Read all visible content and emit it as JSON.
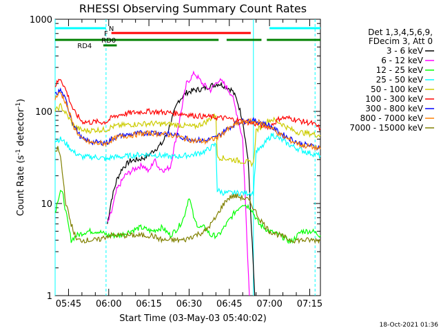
{
  "chart_data": {
    "type": "line",
    "title": "RHESSI Observing Summary Count Rates",
    "xlabel": "Start Time (03-May-03 05:40:02)",
    "ylabel_parts": [
      "Count Rate (s",
      "-1",
      " detector",
      "-1",
      ")"
    ],
    "yscale": "log",
    "ylim": [
      1,
      1000
    ],
    "y_ticks": [
      1,
      10,
      100,
      1000
    ],
    "y_tick_labels": [
      "1",
      "10",
      "100",
      "1000"
    ],
    "xlim_minutes": [
      0,
      99
    ],
    "x_ticks_minutes": [
      5,
      20,
      35,
      50,
      65,
      80,
      95
    ],
    "x_tick_labels": [
      "05:45",
      "06:00",
      "06:15",
      "06:30",
      "06:45",
      "07:00",
      "07:15"
    ],
    "legend_header": [
      "Det 1,3,4,5,6,9,",
      "FDecim 3, Att 0"
    ],
    "legend_placement": "right",
    "series": [
      {
        "name": "3 - 6 keV",
        "color": "#000000",
        "x": [
          19.5,
          21,
          23,
          25,
          28,
          31,
          34,
          37,
          40,
          42,
          44,
          46,
          49,
          52,
          55,
          58,
          61,
          63,
          66,
          68,
          70,
          72,
          74.5
        ],
        "y": [
          6,
          11,
          18,
          24,
          29,
          30,
          32,
          38,
          45,
          60,
          90,
          130,
          160,
          170,
          175,
          190,
          200,
          190,
          170,
          130,
          80,
          30,
          1
        ]
      },
      {
        "name": "6 - 12 keV",
        "color": "#ff00ff",
        "x": [
          19.5,
          21,
          23,
          26,
          29,
          31,
          33,
          35,
          37,
          39,
          41,
          43,
          46,
          49,
          52,
          55,
          58,
          61,
          63,
          66,
          68,
          70,
          72.5
        ],
        "y": [
          6,
          8,
          14,
          20,
          23,
          25,
          26,
          22,
          30,
          24,
          23,
          25,
          70,
          200,
          260,
          200,
          170,
          220,
          200,
          150,
          90,
          50,
          1
        ]
      },
      {
        "name": "12 - 25 keV",
        "color": "#00ff00",
        "x": [
          0,
          1,
          2,
          3,
          4,
          6,
          8,
          12,
          16,
          20,
          24,
          28,
          32,
          36,
          40,
          43,
          46,
          48,
          50,
          52,
          54,
          56,
          58,
          61,
          64,
          67,
          70,
          73,
          76,
          80,
          84,
          88,
          92,
          96,
          99
        ],
        "y": [
          8,
          11,
          14,
          12,
          8,
          4,
          4.5,
          5,
          5,
          4.5,
          4.5,
          5,
          5.5,
          5,
          5.5,
          4.5,
          5.5,
          7,
          12,
          6.5,
          5.5,
          5.5,
          4.5,
          4.5,
          6,
          8,
          10,
          9,
          6,
          5,
          4.5,
          3.8,
          5,
          5,
          4.5
        ]
      },
      {
        "name": "25 - 50 keV",
        "color": "#00ffff",
        "x": [
          0,
          2,
          4,
          7,
          10,
          13,
          15,
          18,
          19.5,
          21,
          24,
          28,
          32,
          36,
          40,
          44,
          48,
          52,
          56,
          60,
          60.5,
          63,
          66,
          69,
          72,
          74,
          75,
          77,
          79,
          81,
          84,
          87,
          90,
          94,
          99
        ],
        "y": [
          48,
          50,
          45,
          36,
          32,
          32,
          32,
          31,
          30,
          32,
          32,
          33,
          34,
          34,
          33,
          32,
          33,
          34,
          37,
          44,
          14,
          13,
          13,
          13,
          13,
          13,
          37,
          40,
          48,
          56,
          50,
          44,
          40,
          36,
          33
        ]
      },
      {
        "name": "50 - 100 keV",
        "color": "#cccc00",
        "x": [
          0,
          2,
          4,
          7,
          10,
          13,
          15,
          18,
          19.5,
          21,
          24,
          28,
          32,
          36,
          40,
          44,
          48,
          52,
          56,
          60,
          60.5,
          63,
          66,
          69,
          72,
          74,
          75,
          77,
          79,
          81,
          84,
          87,
          90,
          94,
          99
        ],
        "y": [
          100,
          115,
          95,
          70,
          62,
          62,
          63,
          63,
          64,
          68,
          70,
          72,
          73,
          74,
          73,
          72,
          70,
          68,
          76,
          92,
          32,
          31,
          30,
          29,
          28,
          27,
          62,
          68,
          78,
          82,
          75,
          66,
          60,
          58,
          55
        ]
      },
      {
        "name": "100 - 300 keV",
        "color": "#ff0000",
        "x": [
          0,
          2,
          4,
          7,
          10,
          13,
          15,
          18,
          19.5,
          21,
          24,
          28,
          32,
          36,
          40,
          44,
          48,
          52,
          56,
          60,
          64,
          68,
          72,
          76,
          80,
          84,
          88,
          92,
          96,
          99
        ],
        "y": [
          190,
          230,
          170,
          100,
          78,
          76,
          77,
          76,
          78,
          85,
          92,
          96,
          99,
          100,
          98,
          96,
          94,
          90,
          88,
          86,
          84,
          80,
          76,
          72,
          68,
          85,
          84,
          78,
          74,
          65
        ]
      },
      {
        "name": "300 - 800 keV",
        "color": "#0000ff",
        "x": [
          0,
          2,
          4,
          7,
          10,
          13,
          15,
          18,
          19.5,
          21,
          24,
          28,
          32,
          36,
          40,
          44,
          48,
          52,
          56,
          60,
          64,
          68,
          72,
          76,
          80,
          84,
          88,
          92,
          96,
          99
        ],
        "y": [
          150,
          170,
          130,
          70,
          50,
          47,
          46,
          46,
          46,
          50,
          54,
          56,
          58,
          59,
          58,
          56,
          52,
          49,
          48,
          52,
          64,
          76,
          80,
          78,
          70,
          58,
          50,
          44,
          42,
          40
        ]
      },
      {
        "name": "800 - 7000 keV",
        "color": "#ff8000",
        "x": [
          0,
          2,
          4,
          7,
          10,
          13,
          15,
          18,
          19.5,
          21,
          24,
          28,
          32,
          36,
          40,
          44,
          48,
          52,
          56,
          60,
          64,
          68,
          72,
          76,
          80,
          84,
          88,
          92,
          96,
          99
        ],
        "y": [
          140,
          160,
          125,
          68,
          49,
          46,
          45,
          45,
          45,
          49,
          53,
          55,
          57,
          58,
          57,
          55,
          51,
          48,
          47,
          51,
          62,
          74,
          78,
          76,
          68,
          56,
          48,
          43,
          41,
          39
        ]
      },
      {
        "name": "7000 - 15000 keV",
        "color": "#808000",
        "x": [
          0,
          1,
          2,
          3,
          4,
          6,
          8,
          12,
          16,
          20,
          24,
          28,
          32,
          36,
          40,
          44,
          48,
          52,
          56,
          60,
          62,
          64,
          66,
          68,
          70,
          72,
          74,
          76,
          80,
          84,
          88,
          92,
          96,
          99
        ],
        "y": [
          35,
          40,
          32,
          18,
          10,
          6,
          4,
          4,
          4,
          4.5,
          4.5,
          4.5,
          4.5,
          4.5,
          4,
          4,
          4,
          4.5,
          5,
          7,
          9,
          11,
          12,
          12,
          11.5,
          11,
          9,
          7,
          5,
          4.5,
          4,
          4,
          4,
          4
        ]
      }
    ],
    "flags": [
      {
        "label": "N",
        "color": "#00ffff",
        "segments": [
          [
            0,
            19
          ],
          [
            80,
            99
          ]
        ],
        "label_at": 21,
        "level": 0
      },
      {
        "label": "F",
        "color": "#ff0000",
        "segments": [
          [
            21,
            73
          ]
        ],
        "label_at": 19,
        "level": 1
      },
      {
        "label": "RD0",
        "color": "#008000",
        "segments": [
          [
            0,
            61
          ],
          [
            64,
            77
          ],
          [
            79,
            99
          ]
        ],
        "label_at": 20,
        "level": 2
      },
      {
        "label": "RD4",
        "color": "#008000",
        "segments": [
          [
            18,
            23
          ]
        ],
        "label_at": 11,
        "level": 3
      }
    ],
    "vertical_markers": [
      {
        "x": 0,
        "color": "#00ffff",
        "style": "solid"
      },
      {
        "x": 19,
        "color": "#00ffff",
        "style": "dashed"
      },
      {
        "x": 74,
        "color": "#00ffff",
        "style": "solid"
      },
      {
        "x": 97,
        "color": "#00ffff",
        "style": "dashed"
      }
    ]
  },
  "timestamp": "18-Oct-2021 01:36"
}
